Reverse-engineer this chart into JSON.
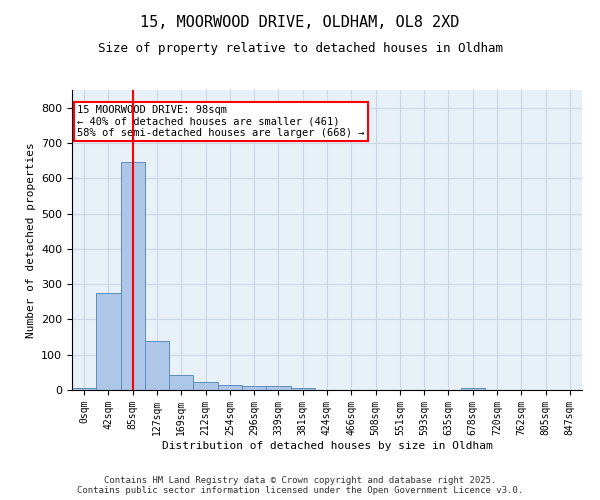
{
  "title_line1": "15, MOORWOOD DRIVE, OLDHAM, OL8 2XD",
  "title_line2": "Size of property relative to detached houses in Oldham",
  "xlabel": "Distribution of detached houses by size in Oldham",
  "ylabel": "Number of detached properties",
  "footer": "Contains HM Land Registry data © Crown copyright and database right 2025.\nContains public sector information licensed under the Open Government Licence v3.0.",
  "bin_labels": [
    "0sqm",
    "42sqm",
    "85sqm",
    "127sqm",
    "169sqm",
    "212sqm",
    "254sqm",
    "296sqm",
    "339sqm",
    "381sqm",
    "424sqm",
    "466sqm",
    "508sqm",
    "551sqm",
    "593sqm",
    "635sqm",
    "678sqm",
    "720sqm",
    "762sqm",
    "805sqm",
    "847sqm"
  ],
  "bar_values": [
    5,
    275,
    645,
    140,
    42,
    22,
    15,
    12,
    10,
    7,
    0,
    0,
    0,
    0,
    0,
    0,
    5,
    0,
    0,
    0,
    0
  ],
  "bar_color": "#aec6e8",
  "bar_edge_color": "#5a8fc0",
  "grid_color": "#c8d8e8",
  "background_color": "#e8f0f8",
  "vline_x": 2,
  "vline_color": "red",
  "annotation_text": "15 MOORWOOD DRIVE: 98sqm\n← 40% of detached houses are smaller (461)\n58% of semi-detached houses are larger (668) →",
  "annotation_box_color": "white",
  "annotation_box_edge": "red",
  "ylim": [
    0,
    850
  ],
  "yticks": [
    0,
    100,
    200,
    300,
    400,
    500,
    600,
    700,
    800
  ]
}
